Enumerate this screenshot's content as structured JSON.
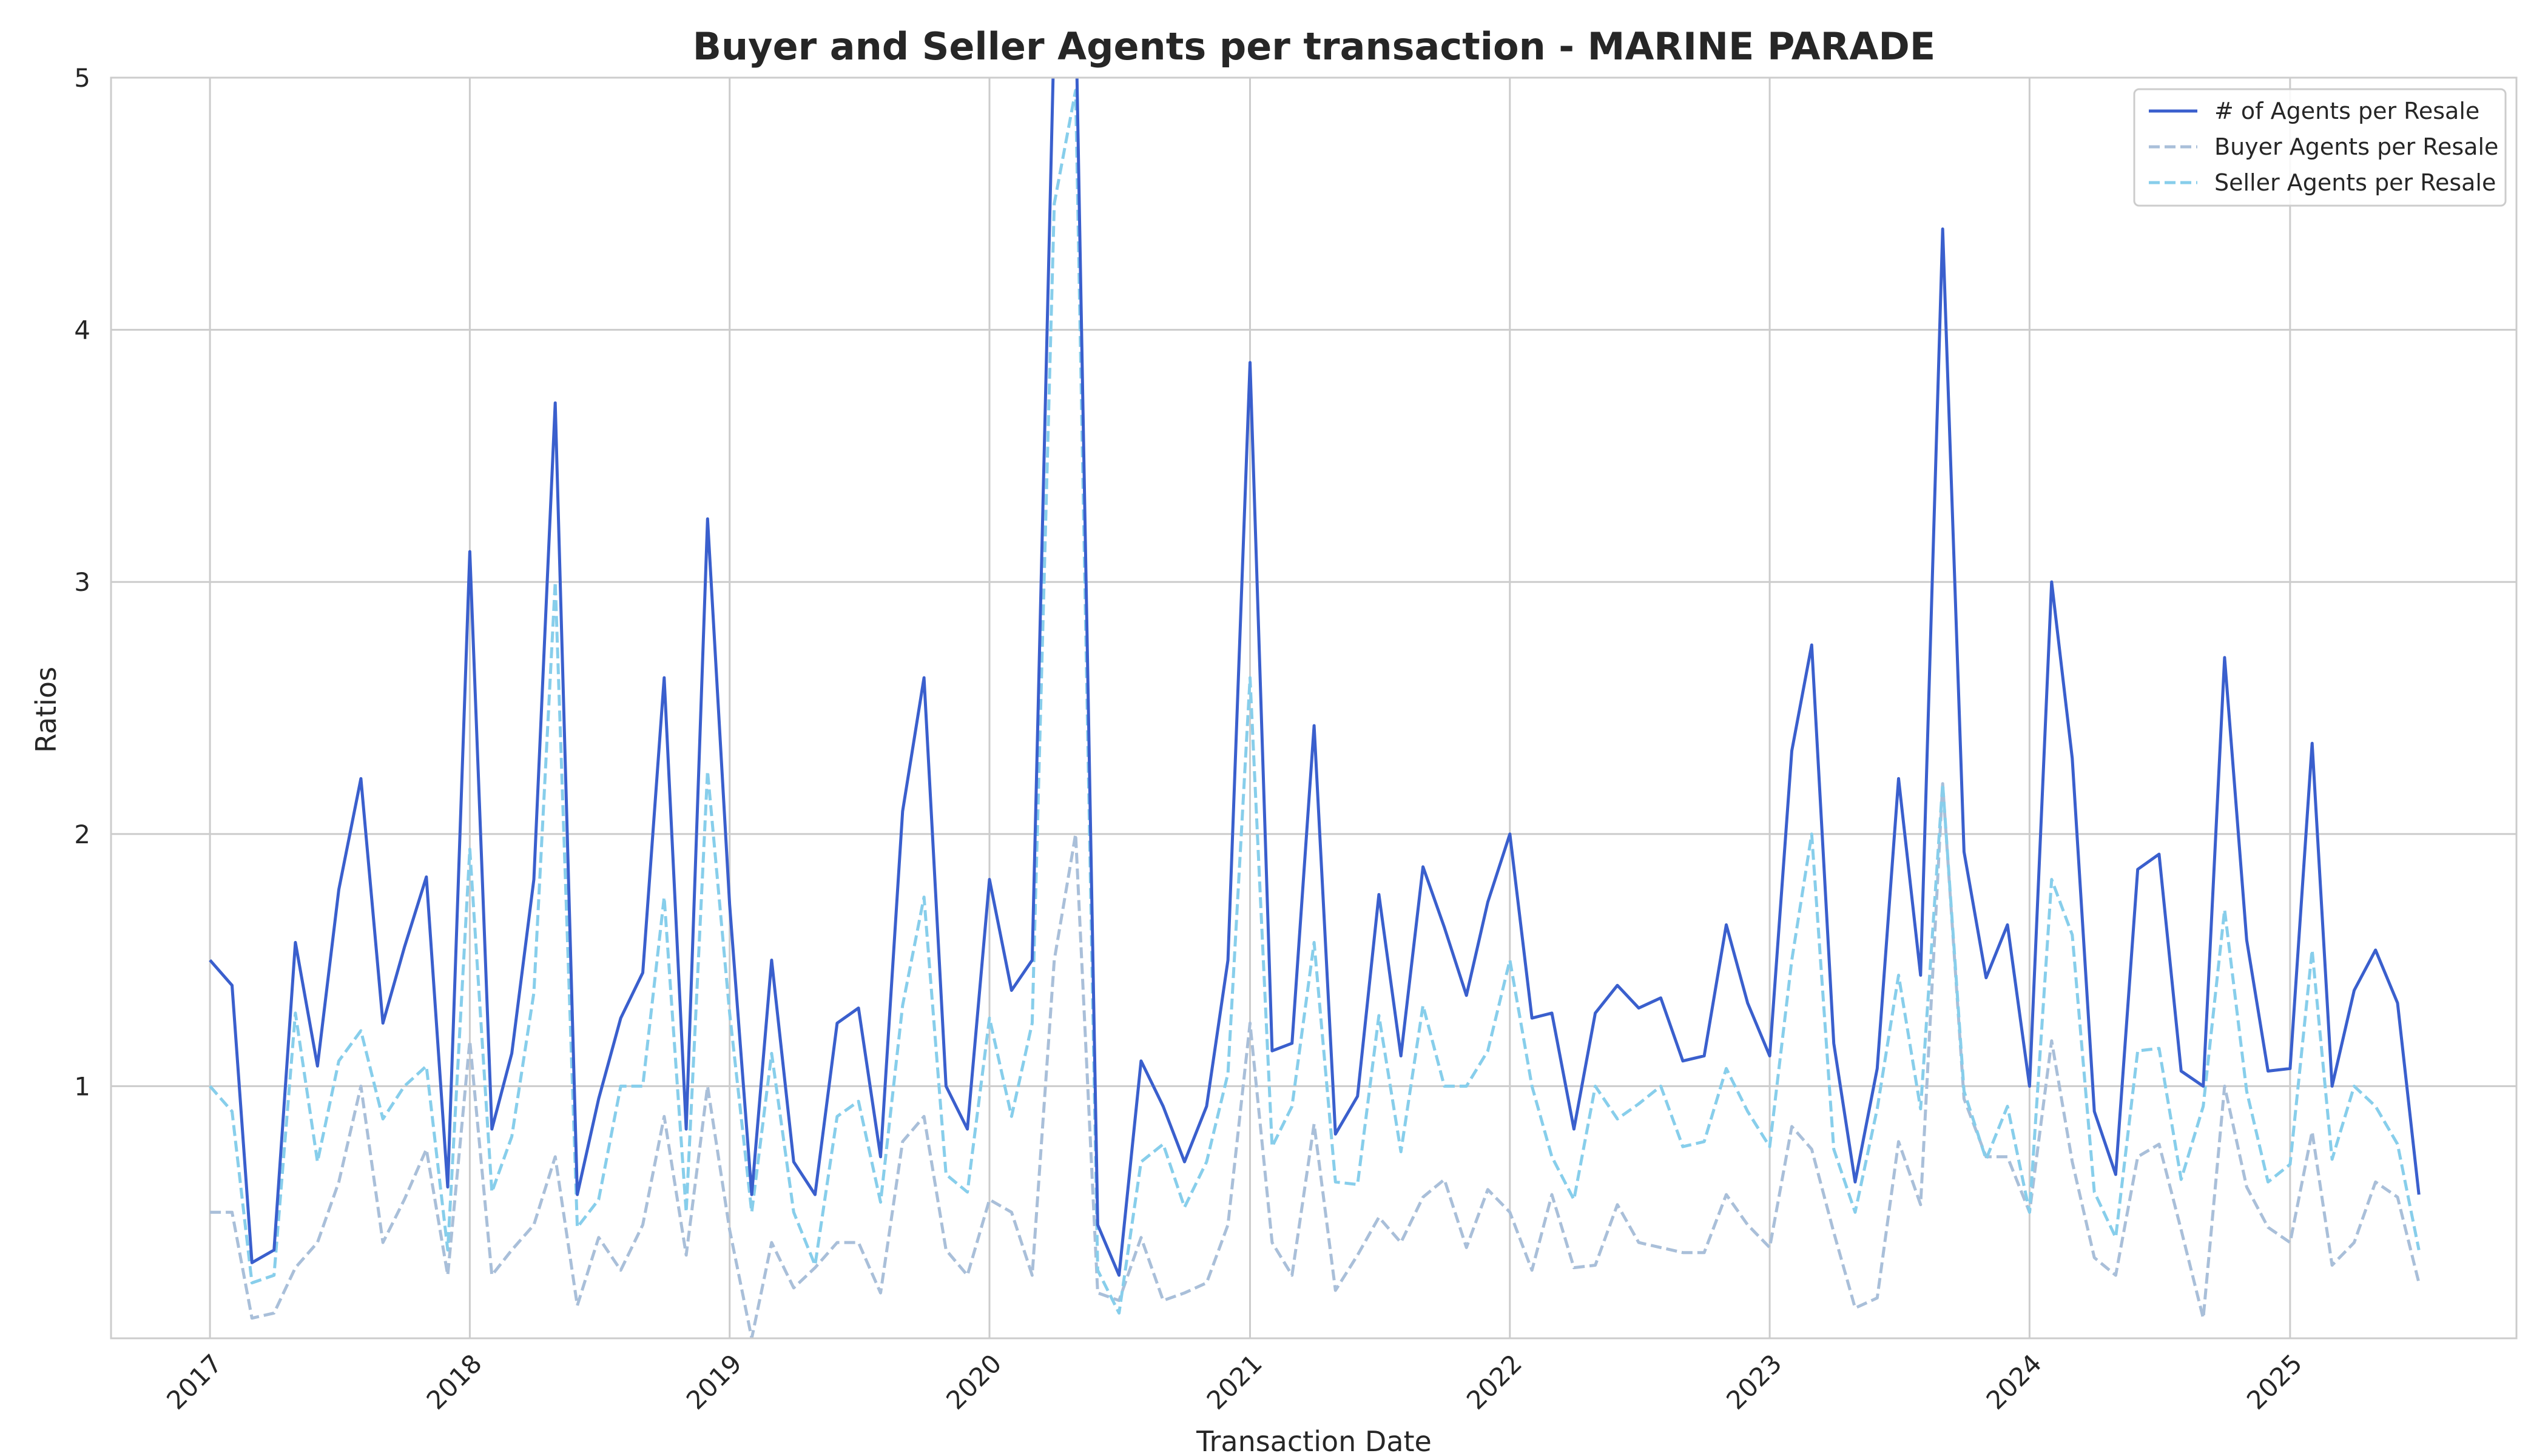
{
  "chart_data": {
    "type": "line",
    "title": "Buyer and Seller Agents per transaction - MARINE PARADE",
    "xlabel": "Transaction Date",
    "ylabel": "Ratios",
    "x_start": "2017-01",
    "x_interval": "monthly",
    "xlim": [
      "2016-08-15",
      "2025-11-15"
    ],
    "ylim": [
      0,
      5
    ],
    "x_ticks": [
      "2017",
      "2018",
      "2019",
      "2020",
      "2021",
      "2022",
      "2023",
      "2024",
      "2025"
    ],
    "y_ticks": [
      "1",
      "2",
      "3",
      "4",
      "5"
    ],
    "grid": true,
    "legend_position": "top-right",
    "series": [
      {
        "name": "# of Agents per Resale",
        "color": "#3a5fcd",
        "style": "solid",
        "values": [
          1.5,
          1.4,
          0.3,
          0.35,
          1.57,
          1.08,
          1.78,
          2.22,
          1.25,
          1.55,
          1.83,
          0.6,
          3.12,
          0.83,
          1.13,
          1.82,
          3.71,
          0.57,
          0.95,
          1.27,
          1.45,
          2.62,
          0.83,
          3.25,
          1.72,
          0.57,
          1.5,
          0.7,
          0.57,
          1.25,
          1.31,
          0.72,
          2.09,
          2.62,
          1.0,
          0.83,
          1.82,
          1.38,
          1.5,
          5.2,
          5.3,
          0.45,
          0.25,
          1.1,
          0.92,
          0.7,
          0.92,
          1.5,
          3.87,
          1.14,
          1.17,
          2.43,
          0.81,
          0.96,
          1.76,
          1.12,
          1.87,
          1.63,
          1.36,
          1.73,
          2.0,
          1.27,
          1.29,
          0.83,
          1.29,
          1.4,
          1.31,
          1.35,
          1.1,
          1.12,
          1.64,
          1.33,
          1.12,
          2.33,
          2.75,
          1.17,
          0.62,
          1.07,
          2.22,
          1.44,
          4.4,
          1.93,
          1.43,
          1.64,
          1.0,
          3.0,
          2.3,
          0.9,
          0.65,
          1.86,
          1.92,
          1.06,
          1.0,
          2.7,
          1.58,
          1.06,
          1.07,
          2.36,
          1.0,
          1.38,
          1.54,
          1.33,
          0.57
        ]
      },
      {
        "name": "Buyer Agents per Resale",
        "color": "#a9bfd9",
        "style": "dashed",
        "values": [
          0.5,
          0.5,
          0.08,
          0.1,
          0.28,
          0.38,
          0.62,
          1.0,
          0.38,
          0.55,
          0.75,
          0.25,
          1.18,
          0.25,
          0.35,
          0.45,
          0.72,
          0.13,
          0.4,
          0.27,
          0.45,
          0.88,
          0.33,
          1.0,
          0.43,
          0.0,
          0.38,
          0.2,
          0.28,
          0.38,
          0.38,
          0.18,
          0.78,
          0.88,
          0.35,
          0.25,
          0.55,
          0.5,
          0.25,
          1.5,
          2.0,
          0.18,
          0.15,
          0.4,
          0.15,
          0.18,
          0.22,
          0.45,
          1.25,
          0.38,
          0.25,
          0.85,
          0.19,
          0.33,
          0.48,
          0.38,
          0.56,
          0.63,
          0.36,
          0.59,
          0.5,
          0.27,
          0.57,
          0.28,
          0.29,
          0.53,
          0.38,
          0.36,
          0.34,
          0.34,
          0.57,
          0.45,
          0.36,
          0.84,
          0.75,
          0.42,
          0.12,
          0.16,
          0.78,
          0.53,
          2.2,
          0.95,
          0.72,
          0.72,
          0.5,
          1.18,
          0.7,
          0.32,
          0.25,
          0.72,
          0.77,
          0.43,
          0.08,
          1.0,
          0.6,
          0.44,
          0.38,
          0.82,
          0.29,
          0.38,
          0.62,
          0.56,
          0.22
        ]
      },
      {
        "name": "Seller Agents per Resale",
        "color": "#87ceeb",
        "style": "dashed",
        "values": [
          1.0,
          0.9,
          0.22,
          0.25,
          1.29,
          0.7,
          1.1,
          1.22,
          0.87,
          1.0,
          1.08,
          0.35,
          1.94,
          0.58,
          0.8,
          1.37,
          3.0,
          0.44,
          0.55,
          1.0,
          1.0,
          1.75,
          0.5,
          2.25,
          1.29,
          0.5,
          1.13,
          0.5,
          0.29,
          0.88,
          0.94,
          0.54,
          1.32,
          1.75,
          0.65,
          0.58,
          1.27,
          0.88,
          1.25,
          4.5,
          4.95,
          0.27,
          0.1,
          0.7,
          0.77,
          0.52,
          0.7,
          1.05,
          2.62,
          0.76,
          0.92,
          1.57,
          0.62,
          0.61,
          1.28,
          0.74,
          1.32,
          1.0,
          1.0,
          1.14,
          1.5,
          1.0,
          0.72,
          0.55,
          1.0,
          0.87,
          0.93,
          1.0,
          0.76,
          0.78,
          1.07,
          0.9,
          0.76,
          1.5,
          2.0,
          0.75,
          0.5,
          0.91,
          1.44,
          0.91,
          2.2,
          0.98,
          0.71,
          0.92,
          0.5,
          1.82,
          1.6,
          0.58,
          0.4,
          1.14,
          1.15,
          0.63,
          0.92,
          1.7,
          0.98,
          0.62,
          0.69,
          1.54,
          0.71,
          1.0,
          0.92,
          0.77,
          0.35
        ]
      }
    ]
  }
}
